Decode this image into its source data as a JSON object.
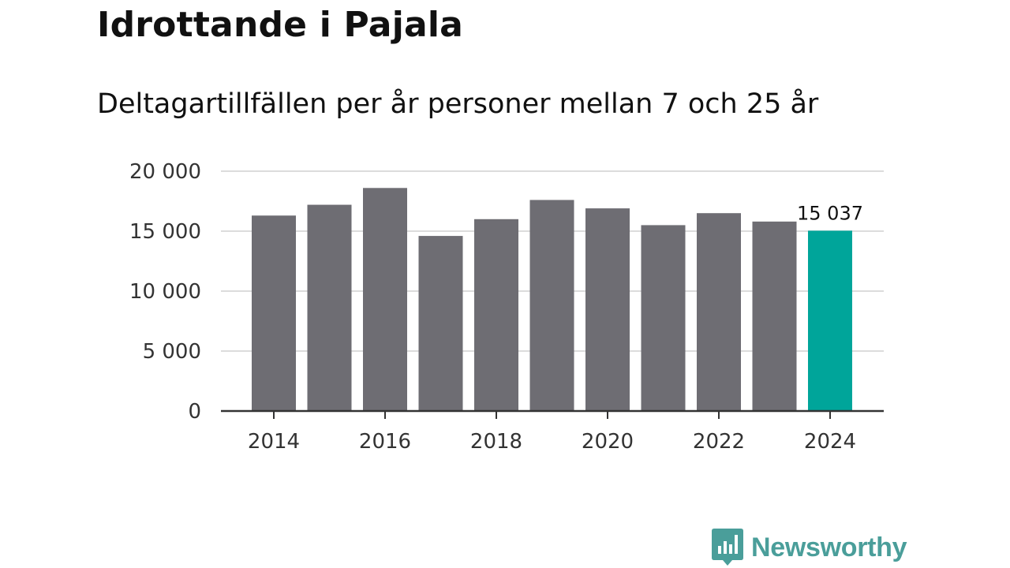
{
  "title": "Idrottande i Pajala",
  "subtitle": "Deltagartillfällen per år personer mellan 7 och 25 år",
  "brand": {
    "name": "Newsworthy",
    "color": "#4a9e9a",
    "icon": "bar-chart-speech-bubble-icon"
  },
  "colors": {
    "bar": "#6e6d73",
    "highlight": "#00a59a",
    "grid": "#dcdcdc",
    "axis": "#333333"
  },
  "chart_data": {
    "type": "bar",
    "title": "Idrottande i Pajala",
    "subtitle": "Deltagartillfällen per år personer mellan 7 och 25 år",
    "xlabel": "",
    "ylabel": "",
    "categories": [
      "2014",
      "2015",
      "2016",
      "2017",
      "2018",
      "2019",
      "2020",
      "2021",
      "2022",
      "2023",
      "2024"
    ],
    "values": [
      16300,
      17200,
      18600,
      14600,
      16000,
      17600,
      16900,
      15500,
      16500,
      15800,
      15037
    ],
    "highlight_index": 10,
    "highlight_label": "15 037",
    "ylim": [
      0,
      20000
    ],
    "yticks": [
      0,
      5000,
      10000,
      15000,
      20000
    ],
    "ytick_labels": [
      "0",
      "5 000",
      "10 000",
      "15 000",
      "20 000"
    ],
    "xtick_labels": [
      "2014",
      "2016",
      "2018",
      "2020",
      "2022",
      "2024"
    ],
    "grid": true,
    "legend": "none"
  }
}
